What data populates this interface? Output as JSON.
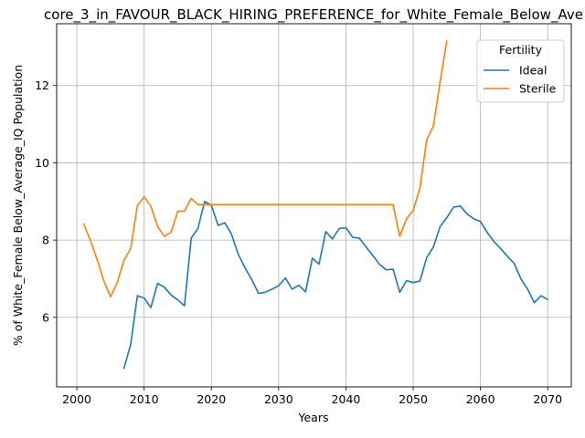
{
  "chart_data": {
    "type": "line",
    "title": "core_3_in_FAVOUR_BLACK_HIRING_PREFERENCE_for_White_Female_Below_Ave",
    "xlabel": "Years",
    "ylabel": "% of White_Female Below_Average_IQ Population",
    "xlim": [
      1997,
      2073.5
    ],
    "ylim": [
      4.2,
      13.6
    ],
    "xticks": [
      2000,
      2010,
      2020,
      2030,
      2040,
      2050,
      2060,
      2070
    ],
    "yticks": [
      6,
      8,
      10,
      12
    ],
    "grid": true,
    "legend": {
      "title": "Fertility",
      "placement": "top-right"
    },
    "series": [
      {
        "name": "Ideal",
        "color": "#1f77b4",
        "x": [
          2007,
          2008,
          2009,
          2010,
          2011,
          2012,
          2013,
          2014,
          2015,
          2016,
          2017,
          2018,
          2019,
          2020,
          2021,
          2022,
          2023,
          2024,
          2025,
          2026,
          2027,
          2028,
          2029,
          2030,
          2031,
          2032,
          2033,
          2034,
          2035,
          2036,
          2037,
          2038,
          2039,
          2040,
          2041,
          2042,
          2043,
          2044,
          2045,
          2046,
          2047,
          2048,
          2049,
          2050,
          2051,
          2052,
          2053,
          2054,
          2055,
          2056,
          2057,
          2058,
          2059,
          2060,
          2061,
          2062,
          2063,
          2064,
          2065,
          2066,
          2067,
          2068,
          2069,
          2070
        ],
        "y": [
          4.68,
          5.3,
          6.56,
          6.5,
          6.25,
          6.88,
          6.78,
          6.58,
          6.45,
          6.3,
          8.05,
          8.3,
          9.0,
          8.9,
          8.38,
          8.45,
          8.15,
          7.63,
          7.28,
          6.98,
          6.62,
          6.65,
          6.73,
          6.82,
          7.02,
          6.73,
          6.83,
          6.66,
          7.53,
          7.38,
          8.22,
          8.03,
          8.3,
          8.32,
          8.07,
          8.05,
          7.82,
          7.6,
          7.37,
          7.23,
          7.25,
          6.65,
          6.95,
          6.9,
          6.94,
          7.55,
          7.82,
          8.35,
          8.58,
          8.85,
          8.88,
          8.68,
          8.55,
          8.48,
          8.2,
          7.96,
          7.78,
          7.58,
          7.4,
          7.0,
          6.73,
          6.38,
          6.56,
          6.46
        ]
      },
      {
        "name": "Sterile",
        "color": "#ff7f0e",
        "x": [
          2001,
          2002,
          2003,
          2004,
          2005,
          2006,
          2007,
          2008,
          2009,
          2010,
          2011,
          2012,
          2013,
          2014,
          2015,
          2016,
          2017,
          2018,
          2019,
          2020,
          2021,
          2022,
          2023,
          2024,
          2025,
          2026,
          2027,
          2028,
          2029,
          2030,
          2031,
          2032,
          2033,
          2034,
          2035,
          2036,
          2037,
          2038,
          2039,
          2040,
          2041,
          2042,
          2043,
          2044,
          2045,
          2046,
          2047,
          2048,
          2049,
          2050,
          2051,
          2052,
          2053,
          2054,
          2055
        ],
        "y": [
          8.42,
          8.0,
          7.5,
          6.95,
          6.53,
          6.9,
          7.48,
          7.78,
          8.9,
          9.12,
          8.88,
          8.35,
          8.1,
          8.2,
          8.75,
          8.75,
          9.08,
          8.92,
          8.92,
          8.92,
          8.92,
          8.92,
          8.92,
          8.92,
          8.92,
          8.92,
          8.92,
          8.92,
          8.92,
          8.92,
          8.92,
          8.92,
          8.92,
          8.92,
          8.92,
          8.92,
          8.92,
          8.92,
          8.92,
          8.92,
          8.92,
          8.92,
          8.92,
          8.92,
          8.92,
          8.92,
          8.92,
          8.1,
          8.55,
          8.77,
          9.35,
          10.6,
          10.95,
          12.1,
          13.15
        ]
      }
    ]
  }
}
